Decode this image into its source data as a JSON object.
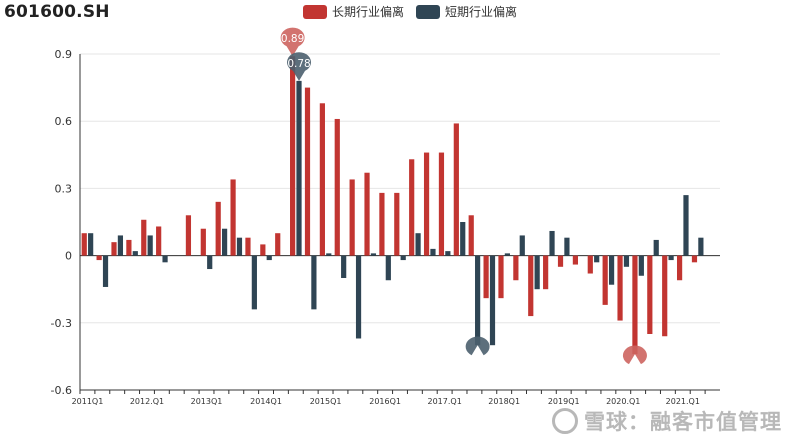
{
  "title": "601600.SH",
  "watermark": "雪球：融客市值管理",
  "colors": {
    "long": "#c23531",
    "short": "#2f4554",
    "grid": "#e6e6e6",
    "axis": "#333333"
  },
  "chart_data": {
    "type": "bar",
    "ylim": [
      -0.6,
      0.9
    ],
    "yticks": [
      -0.6,
      -0.3,
      0,
      0.3,
      0.6,
      0.9
    ],
    "ytick_labels": [
      "-0.6",
      "-0.3",
      "0",
      "0.3",
      "0.6",
      "0.9"
    ],
    "grid": true,
    "legend_position": "top-center",
    "categories": [
      "2011Q1",
      "2011Q2",
      "2011Q3",
      "2011Q4",
      "2012.Q1",
      "2012Q2",
      "2012Q3",
      "2012Q4",
      "2013Q1",
      "2013Q2",
      "2013Q3",
      "2013Q4",
      "2014Q1",
      "2014Q2",
      "2014Q3",
      "2014Q4",
      "2015Q1",
      "2015Q2",
      "2015Q3",
      "2015Q4",
      "2016Q1",
      "2016Q2",
      "2016Q3",
      "2016Q4",
      "2017.Q1",
      "2017Q2",
      "2017Q3",
      "2017Q4",
      "2018Q1",
      "2018Q2",
      "2018Q3",
      "2018Q4",
      "2019Q1",
      "2019Q2",
      "2019Q3",
      "2019Q4",
      "2020.Q1",
      "2020Q2",
      "2020Q3",
      "2020Q4",
      "2021.Q1",
      "2021Q2",
      "2021Q3"
    ],
    "shown_category_labels": [
      "2011Q1",
      "2012.Q1",
      "2013Q1",
      "2014Q1",
      "2015Q1",
      "2016Q1",
      "2017.Q1",
      "2018Q1",
      "2019Q1",
      "2020.Q1",
      "2021.Q1"
    ],
    "series": [
      {
        "name": "长期行业偏离",
        "values": [
          0.1,
          -0.02,
          0.06,
          0.07,
          0.16,
          0.13,
          0.0,
          0.18,
          0.12,
          0.24,
          0.34,
          0.08,
          0.05,
          0.1,
          0.89,
          0.75,
          0.68,
          0.61,
          0.34,
          0.37,
          0.28,
          0.28,
          0.43,
          0.46,
          0.46,
          0.59,
          0.18,
          -0.19,
          -0.19,
          -0.11,
          -0.27,
          -0.15,
          -0.05,
          -0.04,
          -0.08,
          -0.22,
          -0.29,
          -0.44,
          -0.35,
          -0.36,
          -0.11,
          -0.03,
          0.0
        ]
      },
      {
        "name": "短期行业偏离",
        "values": [
          0.1,
          -0.14,
          0.09,
          0.02,
          0.09,
          -0.03,
          0.0,
          0.0,
          -0.06,
          0.12,
          0.08,
          -0.24,
          -0.02,
          0.0,
          0.78,
          -0.24,
          0.01,
          -0.1,
          -0.37,
          0.01,
          -0.11,
          -0.02,
          0.1,
          0.03,
          0.02,
          0.15,
          -0.4,
          -0.4,
          0.01,
          0.09,
          -0.15,
          0.11,
          0.08,
          0.0,
          -0.03,
          -0.13,
          -0.05,
          -0.09,
          0.07,
          -0.02,
          0.27,
          0.08,
          0.0
        ]
      }
    ],
    "markers": [
      {
        "series": 0,
        "index": 14,
        "label": "0.89"
      },
      {
        "series": 1,
        "index": 14,
        "label": "0.78"
      },
      {
        "series": 1,
        "index": 26,
        "label": "-0.4"
      },
      {
        "series": 0,
        "index": 37,
        "label": "-0.44"
      }
    ]
  }
}
